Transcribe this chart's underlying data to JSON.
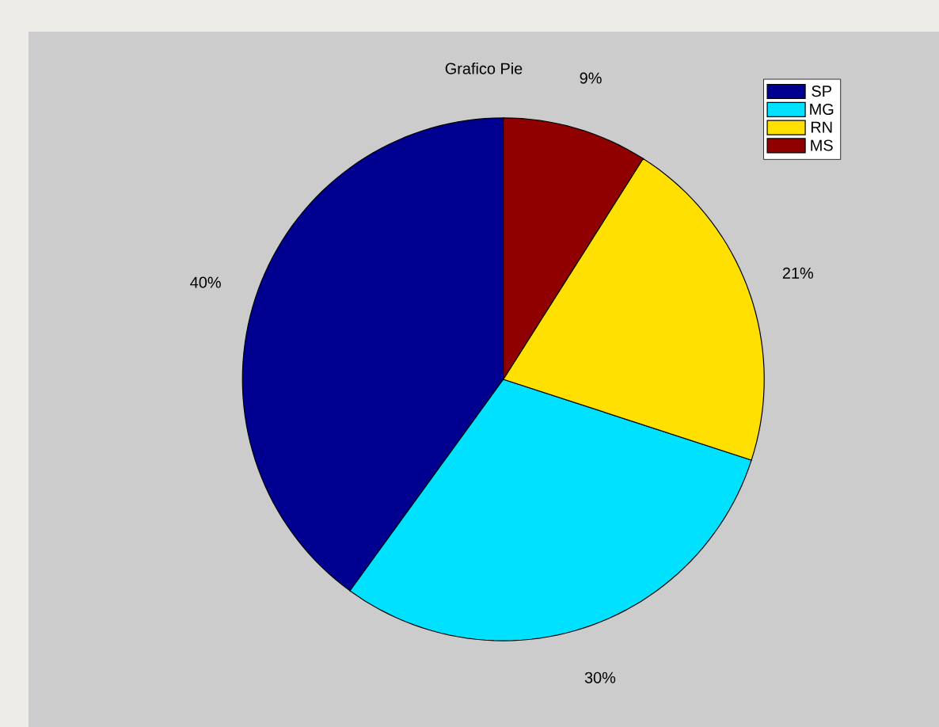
{
  "chart_data": {
    "type": "pie",
    "title": "Grafico Pie",
    "categories": [
      "SP",
      "MG",
      "RN",
      "MS"
    ],
    "values": [
      40,
      30,
      21,
      9
    ],
    "colors": [
      "#000090",
      "#00e0ff",
      "#ffe000",
      "#900000"
    ],
    "value_labels": [
      "40%",
      "30%",
      "21%",
      "9%"
    ],
    "legend": "top right"
  }
}
